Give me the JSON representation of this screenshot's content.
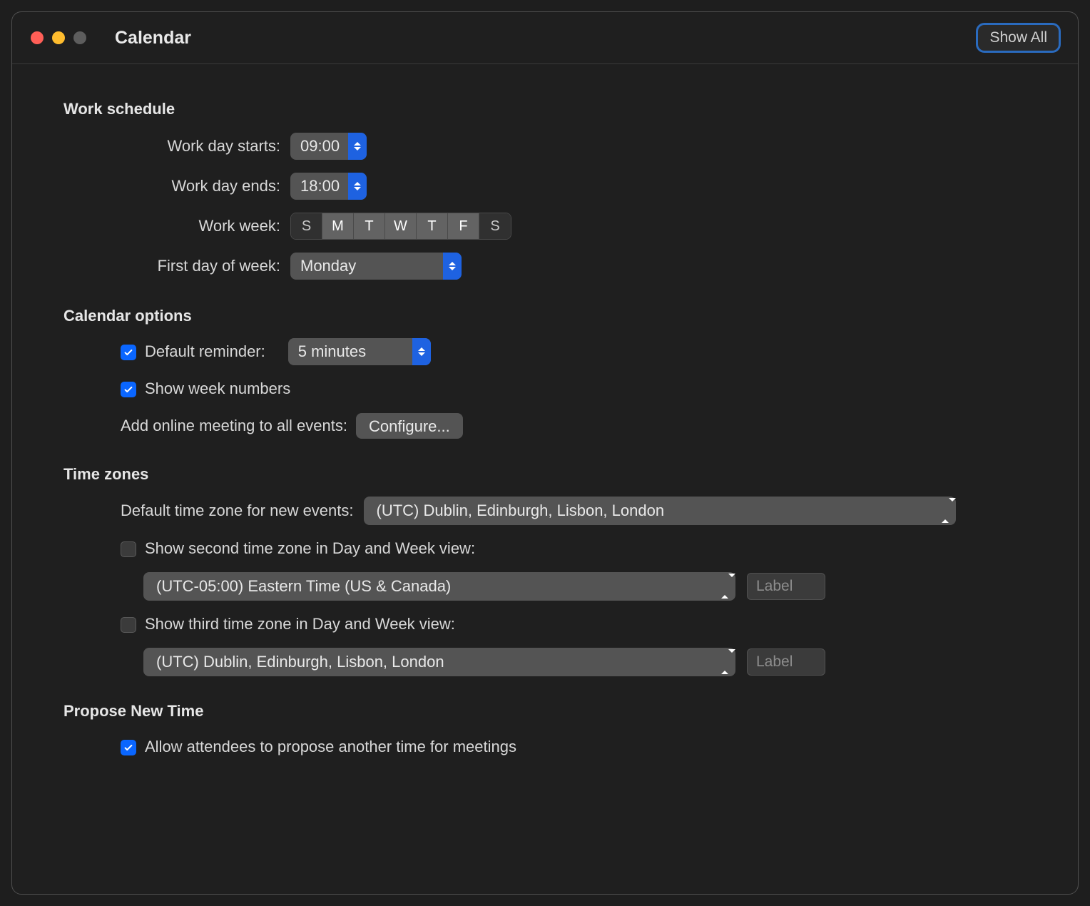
{
  "window": {
    "title": "Calendar",
    "show_all_label": "Show All",
    "traffic_light_colors": {
      "close": "#ff5f57",
      "minimize": "#febc2e",
      "disabled": "#5d5d5d"
    },
    "accent_color": "#0a66ff",
    "focus_ring_color": "#2a6bbf",
    "background_color": "#1f1f1f"
  },
  "sections": {
    "work_schedule": {
      "title": "Work schedule",
      "rows": {
        "start": {
          "label": "Work day starts:",
          "value": "09:00"
        },
        "end": {
          "label": "Work day ends:",
          "value": "18:00"
        },
        "week": {
          "label": "Work week:",
          "days": [
            "S",
            "M",
            "T",
            "W",
            "T",
            "F",
            "S"
          ],
          "selected": [
            false,
            true,
            true,
            true,
            true,
            true,
            false
          ]
        },
        "first_day": {
          "label": "First day of week:",
          "value": "Monday"
        }
      }
    },
    "calendar_options": {
      "title": "Calendar options",
      "reminder": {
        "label": "Default reminder:",
        "checked": true,
        "value": "5 minutes"
      },
      "weeknums": {
        "label": "Show week numbers",
        "checked": true
      },
      "online_mtg": {
        "label": "Add online meeting to all events:",
        "button": "Configure..."
      }
    },
    "time_zones": {
      "title": "Time zones",
      "default": {
        "label": "Default time zone for new events:",
        "value": "(UTC) Dublin, Edinburgh, Lisbon, London"
      },
      "second": {
        "label": "Show second time zone in Day and Week view:",
        "checked": false,
        "value": "(UTC-05:00) Eastern Time (US & Canada)",
        "hint": "Label"
      },
      "third": {
        "label": "Show third time zone in Day and Week view:",
        "checked": false,
        "value": "(UTC) Dublin, Edinburgh, Lisbon, London",
        "hint": "Label"
      }
    },
    "propose": {
      "title": "Propose New Time",
      "allow": {
        "label": "Allow attendees to propose another time for meetings",
        "checked": true
      }
    }
  }
}
